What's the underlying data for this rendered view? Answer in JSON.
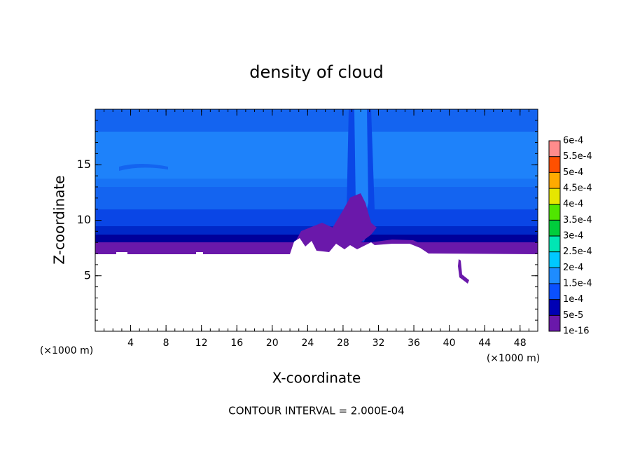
{
  "chart_data": {
    "type": "contour",
    "title": "density of cloud",
    "x_label": "X-coordinate",
    "y_label": "Z-coordinate",
    "x_unit": "(×1000 m)",
    "y_unit": "(×1000 m)",
    "footer": "CONTOUR INTERVAL = 2.000E-04",
    "xlim": [
      0,
      50
    ],
    "ylim": [
      0,
      20
    ],
    "xticks": [
      4,
      8,
      12,
      16,
      20,
      24,
      28,
      32,
      36,
      40,
      44,
      48
    ],
    "yticks": [
      5,
      10,
      15
    ],
    "colorbar": {
      "levels": [
        {
          "value": 1e-16,
          "label": "1e-16"
        },
        {
          "value": 5e-05,
          "label": "5e-5"
        },
        {
          "value": 0.0001,
          "label": "1e-4"
        },
        {
          "value": 0.00015,
          "label": "1.5e-4"
        },
        {
          "value": 0.0002,
          "label": "2e-4"
        },
        {
          "value": 0.00025,
          "label": "2.5e-4"
        },
        {
          "value": 0.0003,
          "label": "3e-4"
        },
        {
          "value": 0.00035,
          "label": "3.5e-4"
        },
        {
          "value": 0.0004,
          "label": "4e-4"
        },
        {
          "value": 0.00045,
          "label": "4.5e-4"
        },
        {
          "value": 0.0005,
          "label": "5e-4"
        },
        {
          "value": 0.00055,
          "label": "5.5e-4"
        },
        {
          "value": 0.0006,
          "label": "6e-4"
        }
      ],
      "colors": [
        "#6a18aa",
        "#0000b4",
        "#0a50ff",
        "#1e8cff",
        "#00c8ff",
        "#00e6b4",
        "#00cd3c",
        "#50e600",
        "#e6e600",
        "#ffaa00",
        "#ff5000",
        "#ff8c8c"
      ]
    }
  }
}
